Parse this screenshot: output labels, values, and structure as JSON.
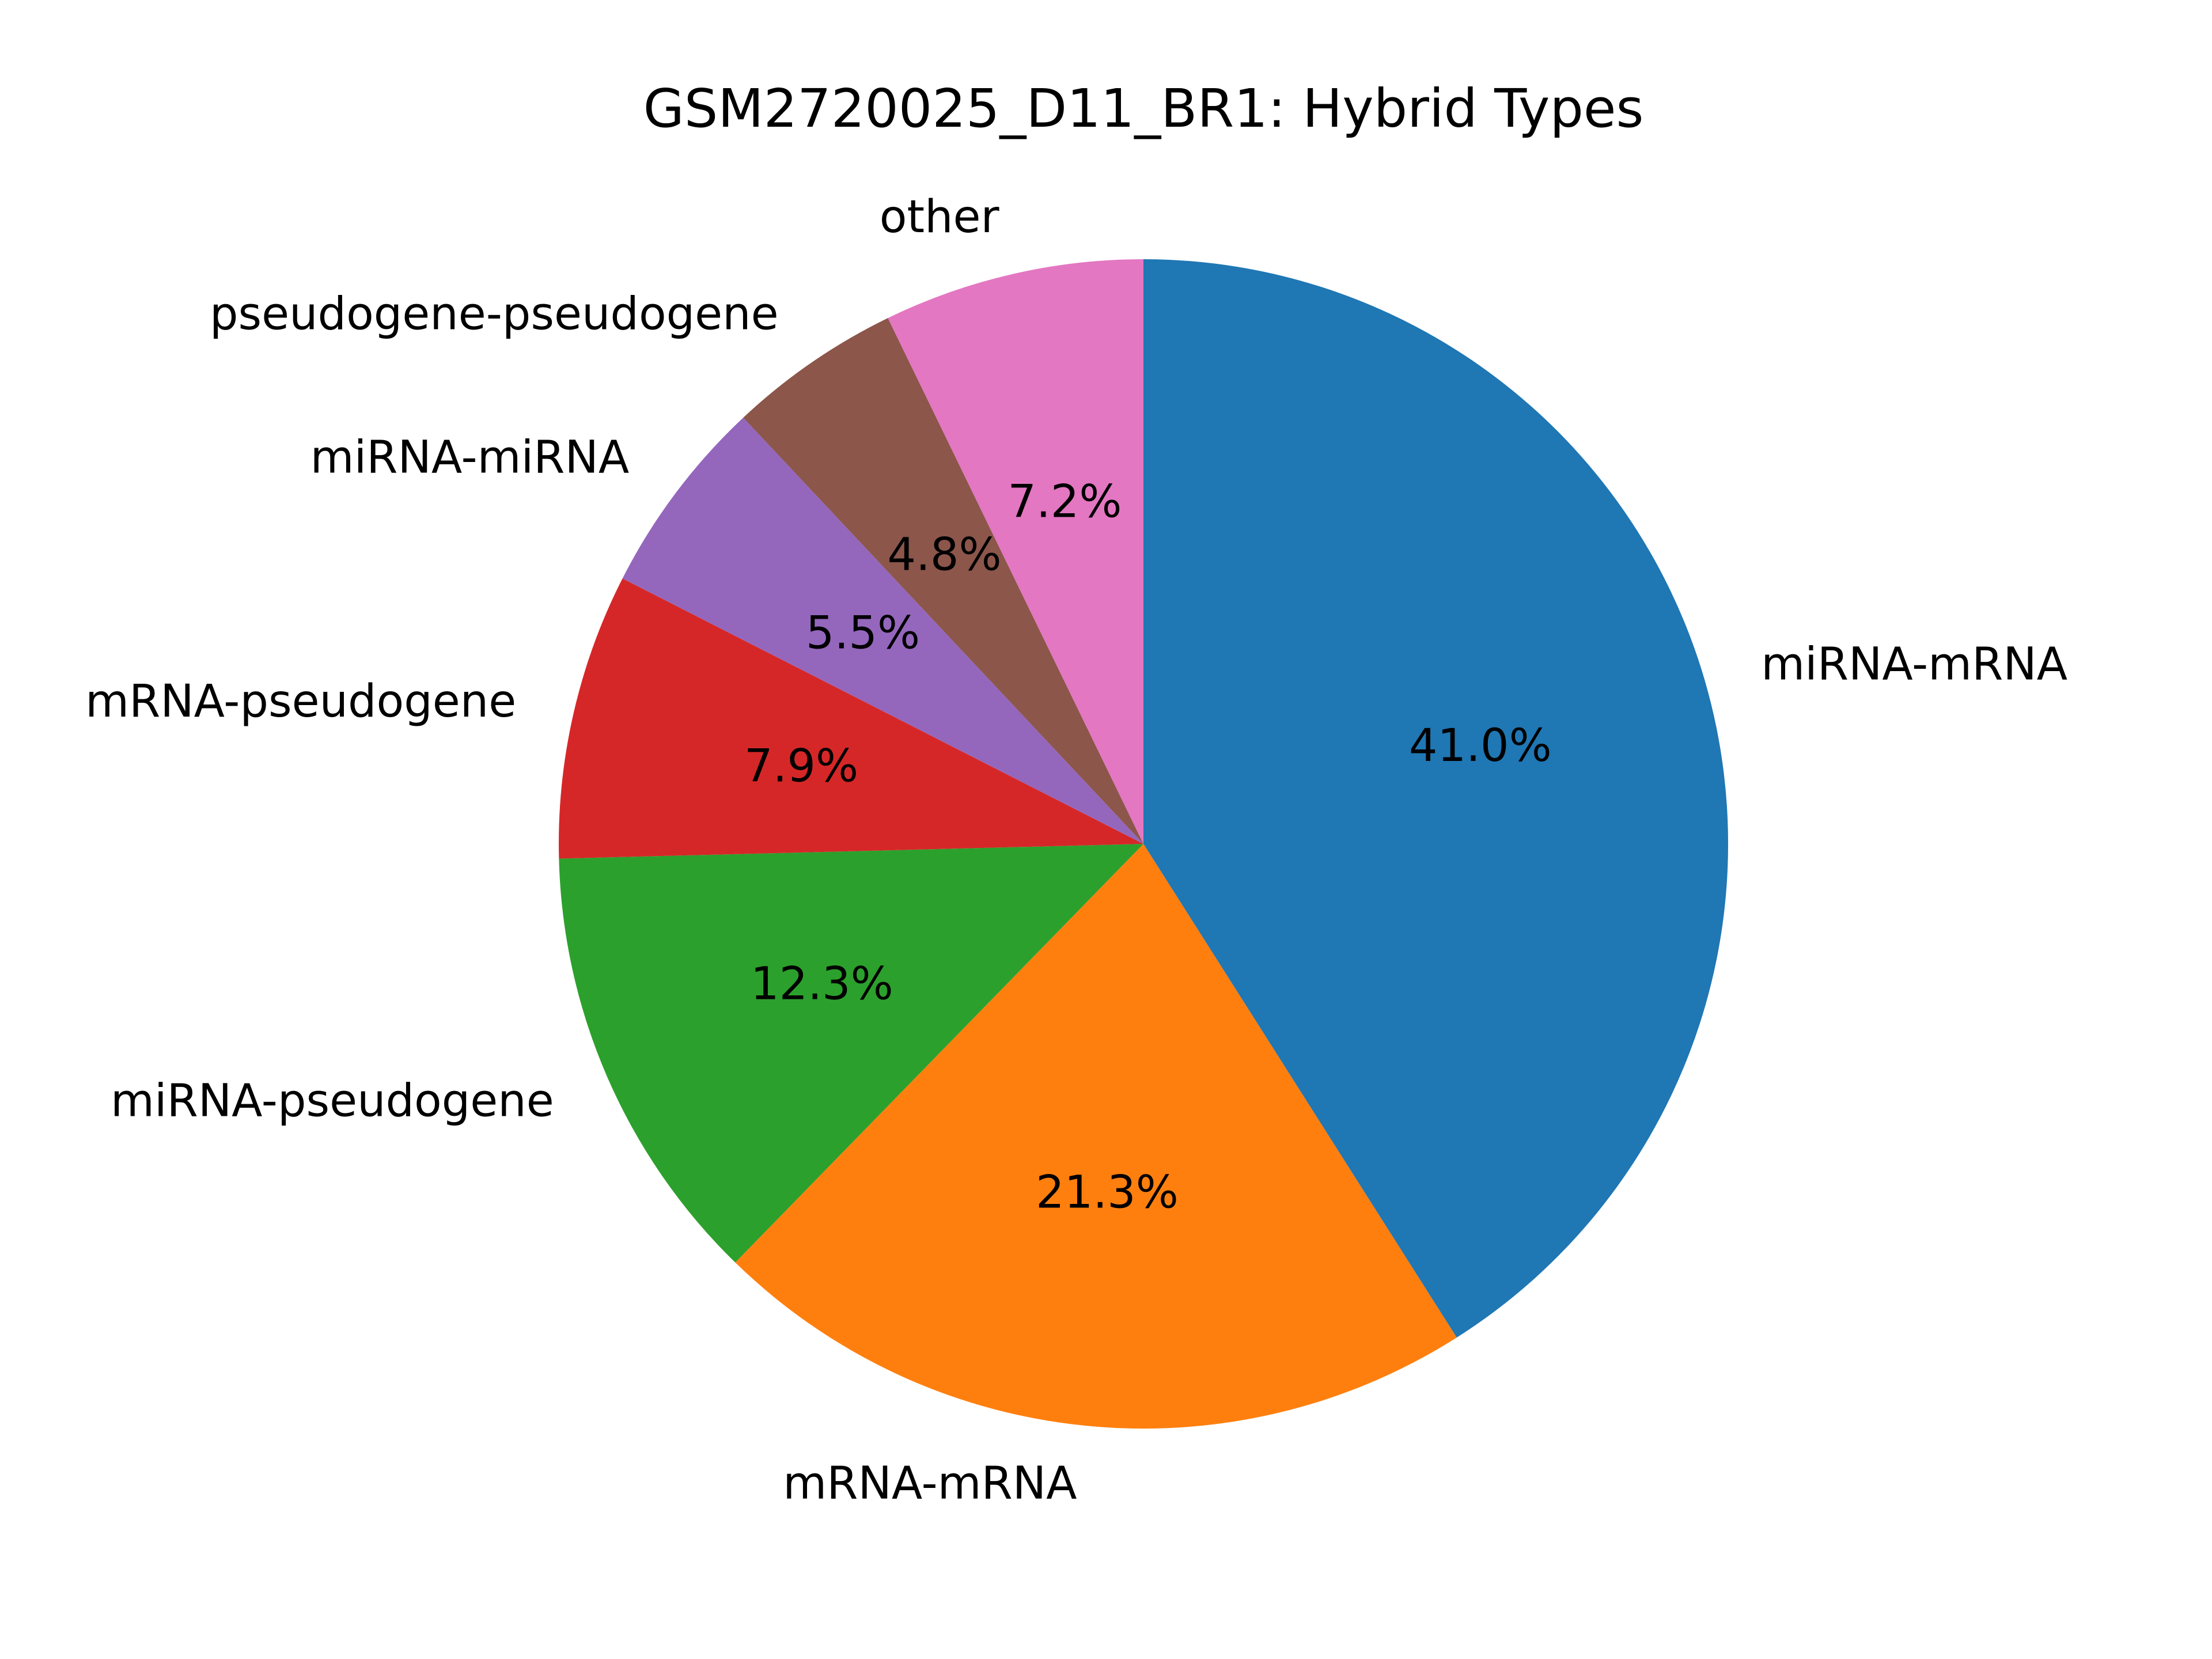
{
  "chart_data": {
    "type": "pie",
    "title": "GSM2720025_D11_BR1: Hybrid Types",
    "slices": [
      {
        "label": "miRNA-mRNA",
        "value": 41.0,
        "pct_label": "41.0%",
        "color": "#1f77b4"
      },
      {
        "label": "mRNA-mRNA",
        "value": 21.3,
        "pct_label": "21.3%",
        "color": "#ff7f0e"
      },
      {
        "label": "miRNA-pseudogene",
        "value": 12.3,
        "pct_label": "12.3%",
        "color": "#2ca02c"
      },
      {
        "label": "mRNA-pseudogene",
        "value": 7.9,
        "pct_label": "7.9%",
        "color": "#d62728"
      },
      {
        "label": "miRNA-miRNA",
        "value": 5.5,
        "pct_label": "5.5%",
        "color": "#9467bd"
      },
      {
        "label": "pseudogene-pseudogene",
        "value": 4.8,
        "pct_label": "4.8%",
        "color": "#8c564b"
      },
      {
        "label": "other",
        "value": 7.2,
        "pct_label": "7.2%",
        "color": "#e377c2"
      }
    ],
    "start_angle": "top",
    "direction": "clockwise",
    "legend": "none"
  }
}
